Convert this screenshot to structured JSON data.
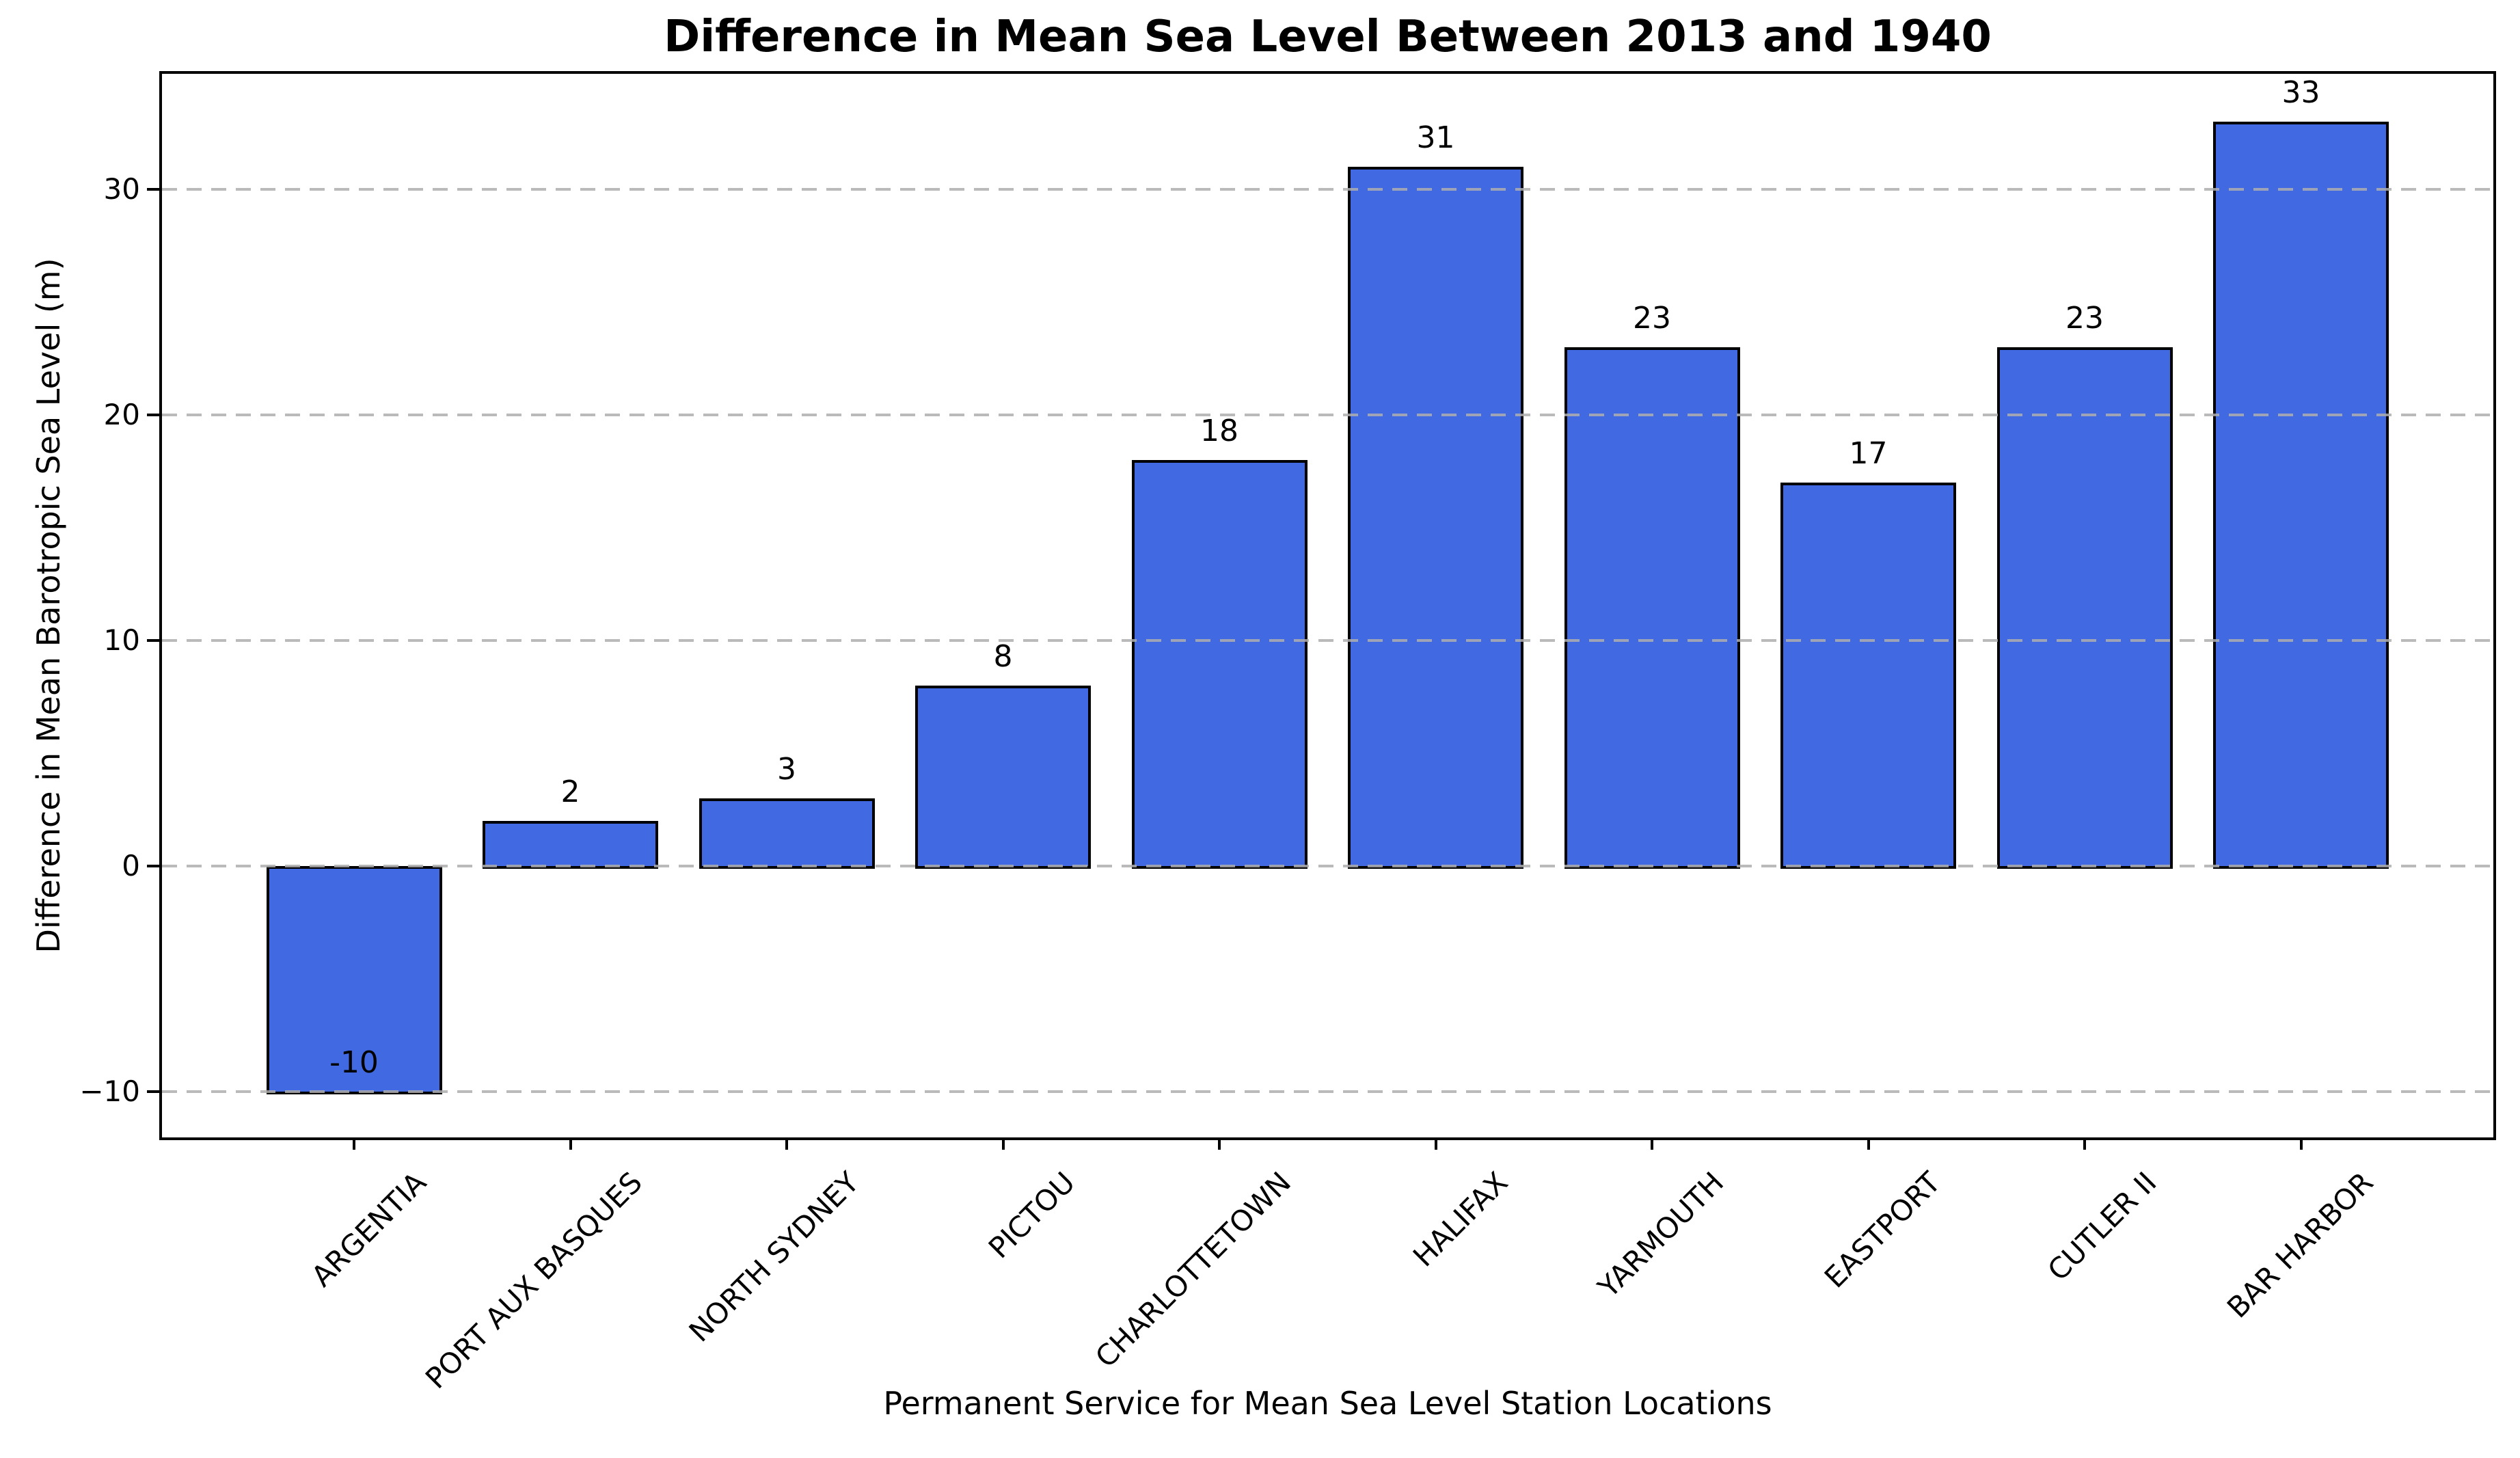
{
  "chart_data": {
    "type": "bar",
    "title": "Difference in Mean Sea Level Between 2013 and 1940",
    "xlabel": "Permanent Service for Mean Sea Level Station Locations",
    "ylabel": "Difference in Mean Barotropic Sea Level (m)",
    "categories": [
      "ARGENTIA",
      "PORT AUX BASQUES",
      "NORTH SYDNEY",
      "PICTOU",
      "CHARLOTTETOWN",
      "HALIFAX",
      "YARMOUTH",
      "EASTPORT",
      "CUTLER II",
      "BAR HARBOR"
    ],
    "values": [
      -10,
      2,
      3,
      8,
      18,
      31,
      23,
      17,
      23,
      33
    ],
    "bar_labels": [
      "-10",
      "2",
      "3",
      "8",
      "18",
      "31",
      "23",
      "17",
      "23",
      "33"
    ],
    "y_ticks": [
      {
        "value": 30,
        "label": "30"
      },
      {
        "value": 20,
        "label": "20"
      },
      {
        "value": 10,
        "label": "10"
      },
      {
        "value": 0,
        "label": "0"
      },
      {
        "value": -10,
        "label": "−10"
      }
    ],
    "ylim": [
      -12.1,
      35.1
    ],
    "x_tick_rotation_deg": 45,
    "grid": "horizontal-dashed",
    "grid_on": true,
    "legend": "none",
    "bar_color": "#4169E1",
    "bar_edge_color": "#000000",
    "grid_color": "#aeaeae",
    "text_color": "#000000",
    "background_color": "#ffffff"
  }
}
